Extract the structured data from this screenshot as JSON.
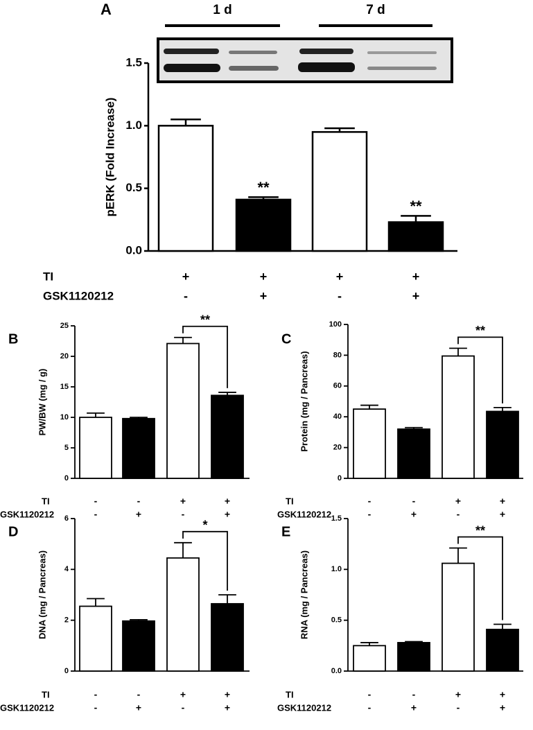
{
  "chart_data": [
    {
      "type": "bar",
      "panel": "A",
      "ylabel": "pERK (Fold Increase)",
      "ylim": [
        0,
        1.5
      ],
      "yticks": [
        {
          "value": 0,
          "label": "0.0"
        },
        0.5,
        {
          "value": 1,
          "label": "1.0"
        },
        1.5
      ],
      "values": [
        1.0,
        0.41,
        0.95,
        0.23
      ],
      "errors": [
        0.05,
        0.02,
        0.03,
        0.05
      ],
      "colors": [
        "#ffffff",
        "#000000",
        "#ffffff",
        "#000000"
      ],
      "significance": [
        null,
        "**",
        null,
        "**"
      ],
      "bracket": false,
      "groups": [
        "1 d",
        "7 d"
      ],
      "conditions": [
        {
          "name": "TI",
          "marks": [
            "+",
            "+",
            "+",
            "+"
          ]
        },
        {
          "name": "GSK1120212",
          "marks": [
            "-",
            "+",
            "-",
            "+"
          ]
        }
      ]
    },
    {
      "type": "bar",
      "panel": "B",
      "ylabel": "PW/BW (mg / g)",
      "ylim": [
        0,
        25
      ],
      "yticks": [
        0,
        5,
        10,
        15,
        20,
        25
      ],
      "values": [
        10,
        9.8,
        22.1,
        13.6
      ],
      "errors": [
        0.7,
        0.2,
        1.0,
        0.5
      ],
      "colors": [
        "#ffffff",
        "#000000",
        "#ffffff",
        "#000000"
      ],
      "significance": [
        null,
        null,
        null,
        "**"
      ],
      "bracket": true,
      "conditions": [
        {
          "name": "TI",
          "marks": [
            "-",
            "-",
            "+",
            "+"
          ]
        },
        {
          "name": "GSK1120212",
          "marks": [
            "-",
            "+",
            "-",
            "+"
          ]
        }
      ]
    },
    {
      "type": "bar",
      "panel": "C",
      "ylabel": "Protein (mg / Pancreas)",
      "ylim": [
        0,
        100
      ],
      "yticks": [
        0,
        20,
        40,
        60,
        80,
        100
      ],
      "values": [
        45,
        32,
        79.5,
        43.5
      ],
      "errors": [
        2.5,
        1,
        5,
        2.5
      ],
      "colors": [
        "#ffffff",
        "#000000",
        "#ffffff",
        "#000000"
      ],
      "significance": [
        null,
        null,
        null,
        "**"
      ],
      "bracket": true,
      "conditions": [
        {
          "name": "TI",
          "marks": [
            "-",
            "-",
            "+",
            "+"
          ]
        },
        {
          "name": "GSK1120212",
          "marks": [
            "-",
            "+",
            "-",
            "+"
          ]
        }
      ]
    },
    {
      "type": "bar",
      "panel": "D",
      "ylabel": "DNA (mg / Pancreas)",
      "ylim": [
        0,
        6
      ],
      "yticks": [
        0,
        2,
        4,
        6
      ],
      "values": [
        2.55,
        1.97,
        4.45,
        2.65
      ],
      "errors": [
        0.3,
        0.05,
        0.6,
        0.35
      ],
      "colors": [
        "#ffffff",
        "#000000",
        "#ffffff",
        "#000000"
      ],
      "significance": [
        null,
        null,
        null,
        "*"
      ],
      "bracket": true,
      "conditions": [
        {
          "name": "TI",
          "marks": [
            "-",
            "-",
            "+",
            "+"
          ]
        },
        {
          "name": "GSK1120212",
          "marks": [
            "-",
            "+",
            "-",
            "+"
          ]
        }
      ]
    },
    {
      "type": "bar",
      "panel": "E",
      "ylabel": "RNA (mg / Pancreas)",
      "ylim": [
        0,
        1.5
      ],
      "yticks": [
        {
          "value": 0,
          "label": "0.0"
        },
        0.5,
        {
          "value": 1,
          "label": "1.0"
        },
        1.5
      ],
      "values": [
        0.25,
        0.28,
        1.06,
        0.41
      ],
      "errors": [
        0.03,
        0.01,
        0.15,
        0.05
      ],
      "colors": [
        "#ffffff",
        "#000000",
        "#ffffff",
        "#000000"
      ],
      "significance": [
        null,
        null,
        null,
        "**"
      ],
      "bracket": true,
      "conditions": [
        {
          "name": "TI",
          "marks": [
            "-",
            "-",
            "+",
            "+"
          ]
        },
        {
          "name": "GSK1120212",
          "marks": [
            "-",
            "+",
            "-",
            "+"
          ]
        }
      ]
    }
  ]
}
